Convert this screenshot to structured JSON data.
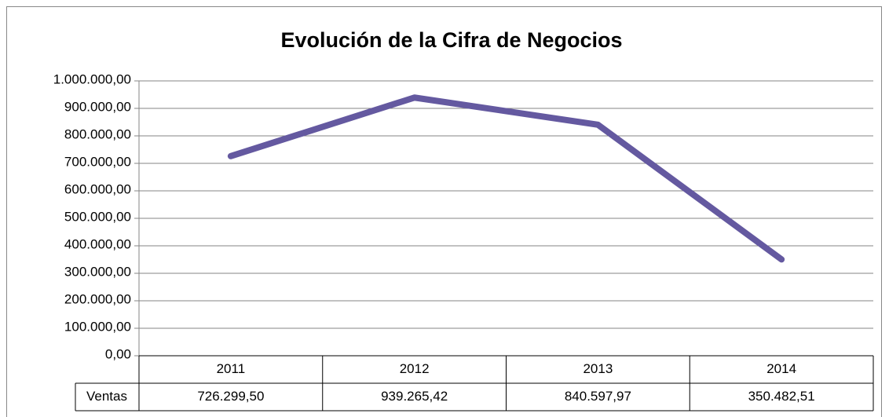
{
  "chart_data": {
    "type": "line",
    "title": "Evolución de la Cifra de Negocios",
    "categories": [
      "2011",
      "2012",
      "2013",
      "2014"
    ],
    "series": [
      {
        "name": "Ventas",
        "color": "#6459a0",
        "values": [
          726299.5,
          939265.42,
          840597.97,
          350482.51
        ],
        "value_labels": [
          "726.299,50",
          "939.265,42",
          "840.597,97",
          "350.482,51"
        ]
      }
    ],
    "ylim": [
      0,
      1000000
    ],
    "yticks": [
      {
        "value": 0,
        "label": "0,00"
      },
      {
        "value": 100000,
        "label": "100.000,00"
      },
      {
        "value": 200000,
        "label": "200.000,00"
      },
      {
        "value": 300000,
        "label": "300.000,00"
      },
      {
        "value": 400000,
        "label": "400.000,00"
      },
      {
        "value": 500000,
        "label": "500.000,00"
      },
      {
        "value": 600000,
        "label": "600.000,00"
      },
      {
        "value": 700000,
        "label": "700.000,00"
      },
      {
        "value": 800000,
        "label": "800.000,00"
      },
      {
        "value": 900000,
        "label": "900.000,00"
      },
      {
        "value": 1000000,
        "label": "1.000.000,00"
      }
    ],
    "grid": true
  }
}
